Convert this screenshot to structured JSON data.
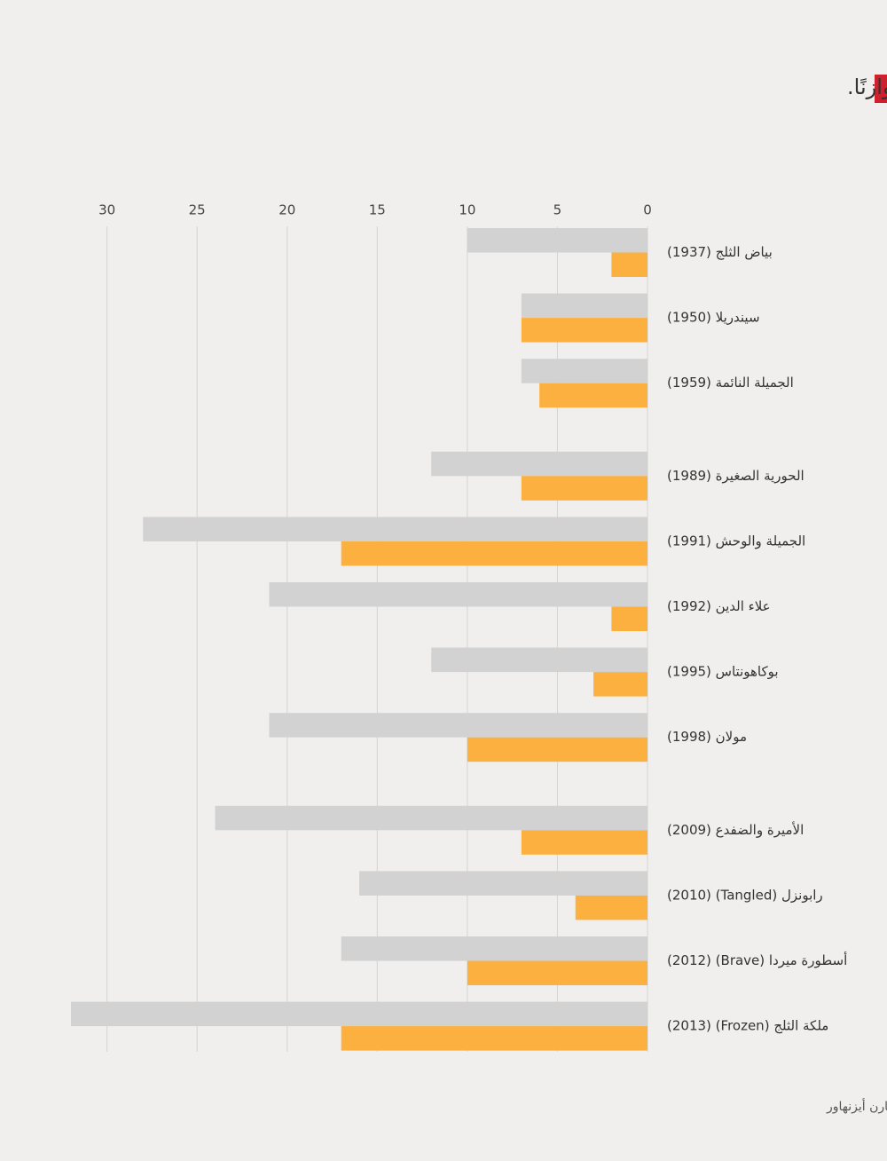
{
  "chart_data": {
    "type": "bar",
    "orientation": "horizontal",
    "title": "أفلام أميرات ديزني الجديدة تحتوي على شخصيّات أكثر، لكنّها أقل توازنًا.",
    "source": "المصدر: كارمن فوت وكارن أيزنهاور",
    "categories": [
      "بياض الثلج (1937)",
      "سيندريلا (1950)",
      "الجميلة النائمة (1959)",
      "الحورية الصغيرة (1989)",
      "الجميلة والوحش (1991)",
      "علاء الدين (1992)",
      "بوكاهونتاس (1995)",
      "مولان (1998)",
      "الأميرة والضفدع (2009)",
      "رابونزل (Tangled) (2010)",
      "أسطورة ميردا (Brave) (2012)",
      "ملكة الثلج (Frozen) (2013)"
    ],
    "series": [
      {
        "color": "#d2d2d2",
        "values": [
          10,
          7,
          7,
          12,
          28,
          21,
          12,
          21,
          24,
          16,
          17,
          32
        ]
      },
      {
        "color": "#fbb040",
        "values": [
          2,
          7,
          6,
          7,
          17,
          2,
          3,
          10,
          7,
          4,
          10,
          17
        ]
      }
    ],
    "xlim": [
      0,
      32
    ],
    "xticks": [
      0,
      5,
      10,
      15,
      20,
      25,
      30
    ],
    "x_reversed": true,
    "grid": true
  }
}
